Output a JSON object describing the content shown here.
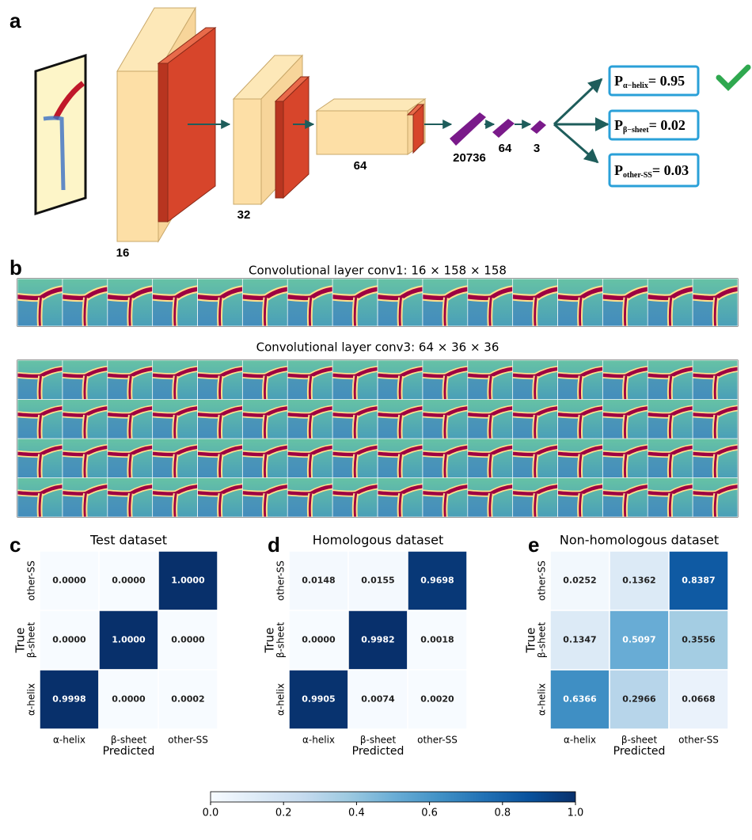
{
  "panel_labels": [
    "a",
    "b",
    "c",
    "d",
    "e"
  ],
  "diagram": {
    "sizes": [
      "16",
      "32",
      "64",
      "20736",
      "64",
      "3"
    ],
    "outputs": [
      {
        "symbol": "P",
        "subscript": "α−helix",
        "text": "= 0.95"
      },
      {
        "symbol": "P",
        "subscript": "β−sheet",
        "text": "= 0.02"
      },
      {
        "symbol": "P",
        "subscript": "other-SS",
        "text": "= 0.03"
      }
    ]
  },
  "feature_maps": {
    "conv1_title": "Convolutional layer conv1: 16 × 158 × 158",
    "conv3_title": "Convolutional layer conv3: 64 × 36 × 36"
  },
  "chart_data": [
    {
      "type": "heatmap",
      "title": "Test dataset",
      "xlabel": "Predicted",
      "ylabel": "True",
      "x_categories": [
        "α-helix",
        "β-sheet",
        "other-SS"
      ],
      "y_categories": [
        "other-SS",
        "β-sheet",
        "α-helix"
      ],
      "values": [
        [
          0,
          0,
          1
        ],
        [
          0,
          1,
          0
        ],
        [
          0.9998,
          0,
          0.0002
        ]
      ],
      "value_labels": [
        [
          "0.0000",
          "0.0000",
          "1.0000"
        ],
        [
          "0.0000",
          "1.0000",
          "0.0000"
        ],
        [
          "0.9998",
          "0.0000",
          "0.0002"
        ]
      ],
      "colormap": "Blues"
    },
    {
      "type": "heatmap",
      "title": "Homologous dataset",
      "xlabel": "Predicted",
      "ylabel": "True",
      "x_categories": [
        "α-helix",
        "β-sheet",
        "other-SS"
      ],
      "y_categories": [
        "other-SS",
        "β-sheet",
        "α-helix"
      ],
      "values": [
        [
          0.0148,
          0.0155,
          0.9698
        ],
        [
          0,
          0.9982,
          0.0018
        ],
        [
          0.9905,
          0.0074,
          0.002
        ]
      ],
      "value_labels": [
        [
          "0.0148",
          "0.0155",
          "0.9698"
        ],
        [
          "0.0000",
          "0.9982",
          "0.0018"
        ],
        [
          "0.9905",
          "0.0074",
          "0.0020"
        ]
      ],
      "colormap": "Blues"
    },
    {
      "type": "heatmap",
      "title": "Non-homologous dataset",
      "xlabel": "Predicted",
      "ylabel": "True",
      "x_categories": [
        "α-helix",
        "β-sheet",
        "other-SS"
      ],
      "y_categories": [
        "other-SS",
        "β-sheet",
        "α-helix"
      ],
      "values": [
        [
          0.0252,
          0.1362,
          0.8387
        ],
        [
          0.1347,
          0.5097,
          0.3556
        ],
        [
          0.6366,
          0.2966,
          0.0668
        ]
      ],
      "value_labels": [
        [
          "0.0252",
          "0.1362",
          "0.8387"
        ],
        [
          "0.1347",
          "0.5097",
          "0.3556"
        ],
        [
          "0.6366",
          "0.2966",
          "0.0668"
        ]
      ],
      "colormap": "Blues"
    }
  ],
  "colorbar": {
    "lim": [
      0,
      1
    ],
    "ticks": [
      {
        "value": 0,
        "label": "0.0"
      },
      {
        "value": 0.2,
        "label": "0.2"
      },
      {
        "value": 0.4,
        "label": "0.4"
      },
      {
        "value": 0.6,
        "label": "0.6"
      },
      {
        "value": 0.8,
        "label": "0.8"
      },
      {
        "value": 1,
        "label": "1.0"
      }
    ]
  }
}
